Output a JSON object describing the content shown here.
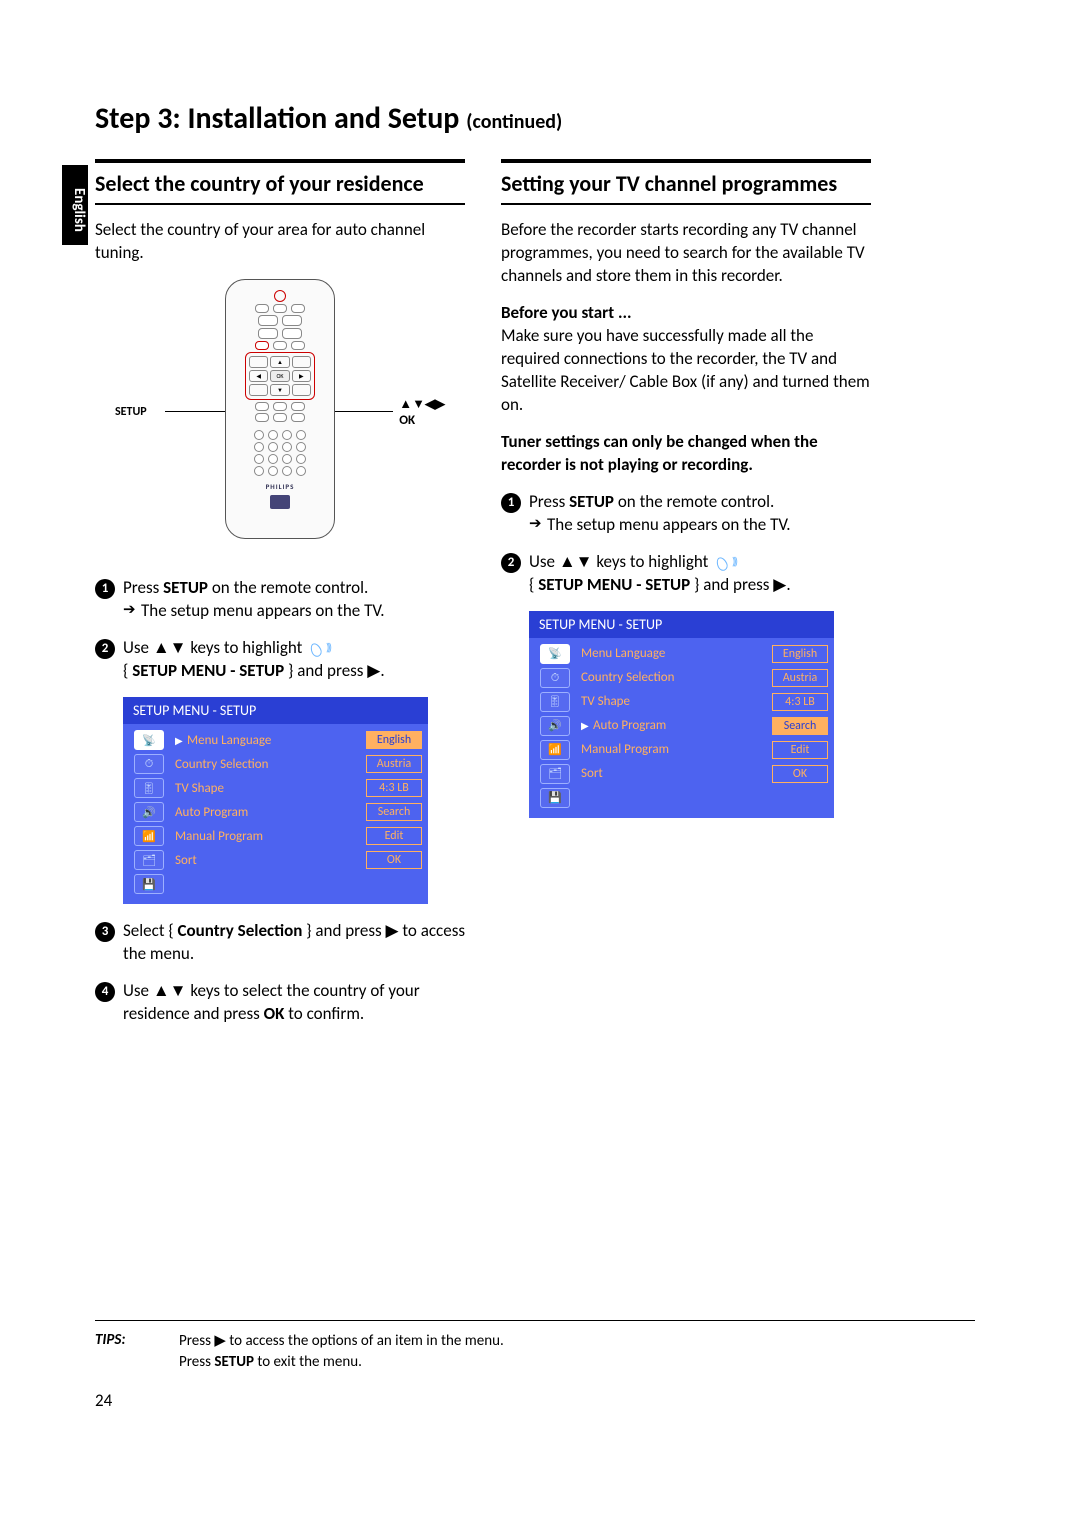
{
  "lang_tab": "English",
  "page_title": "Step 3: Installation and Setup",
  "page_title_suffix": "(continued)",
  "left": {
    "heading": "Select the country of your residence",
    "intro": "Select the country of your area for auto channel tuning.",
    "remote": {
      "label_left": "SETUP",
      "label_right_arrows": "▲▼◀▶",
      "label_right_ok": "OK",
      "brand": "PHILIPS"
    },
    "steps": {
      "s1a": "Press ",
      "s1b": "SETUP",
      "s1c": " on the remote control.",
      "s1_sub": "The setup menu appears on the TV.",
      "s2a": "Use ▲▼ keys to highlight ",
      "s2b": "{ ",
      "s2c": "SETUP MENU - SETUP",
      "s2d": " } and press ▶.",
      "s3a": "Select { ",
      "s3b": "Country Selection",
      "s3c": " } and press ▶ to access the menu.",
      "s4a": "Use ▲▼ keys to select the country of your residence and press ",
      "s4b": "OK",
      "s4c": " to confirm."
    },
    "menu": {
      "title": "SETUP MENU - SETUP",
      "highlighted_row": 0,
      "rows": [
        {
          "label": "Menu Language",
          "value": "English"
        },
        {
          "label": "Country Selection",
          "value": "Austria"
        },
        {
          "label": "TV Shape",
          "value": "4:3 LB"
        },
        {
          "label": "Auto Program",
          "value": "Search"
        },
        {
          "label": "Manual Program",
          "value": "Edit"
        },
        {
          "label": "Sort",
          "value": "OK"
        }
      ]
    }
  },
  "right": {
    "heading": "Setting your TV channel programmes",
    "intro": "Before the recorder starts recording any TV channel programmes, you need to search for the available TV channels and store them in this recorder.",
    "before_label": "Before you start ...",
    "before_text": "Make sure you have successfully made all the required connections to the recorder, the TV and Satellite Receiver/ Cable Box (if any) and turned them on.",
    "tuner_note": "Tuner settings can only be changed when the recorder is not playing or recording.",
    "steps": {
      "s1a": "Press ",
      "s1b": "SETUP",
      "s1c": " on the remote control.",
      "s1_sub": "The setup menu appears on the TV.",
      "s2a": "Use ▲▼ keys to highlight ",
      "s2b": "{ ",
      "s2c": "SETUP MENU - SETUP",
      "s2d": " } and press ▶."
    },
    "menu": {
      "title": "SETUP MENU - SETUP",
      "highlighted_row": 3,
      "rows": [
        {
          "label": "Menu Language",
          "value": "English"
        },
        {
          "label": "Country Selection",
          "value": "Austria"
        },
        {
          "label": "TV Shape",
          "value": "4:3 LB"
        },
        {
          "label": "Auto Program",
          "value": "Search"
        },
        {
          "label": "Manual Program",
          "value": "Edit"
        },
        {
          "label": "Sort",
          "value": "OK"
        }
      ]
    }
  },
  "tips": {
    "label": "TIPS:",
    "line1a": "Press ▶ to access the options of an item in the menu.",
    "line2a": "Press ",
    "line2b": "SETUP",
    "line2c": " to exit the menu."
  },
  "page_number": "24",
  "colors": {
    "menu_header": "#2a3fd4",
    "menu_body": "#4d63f0",
    "menu_accent": "#ffb060"
  }
}
